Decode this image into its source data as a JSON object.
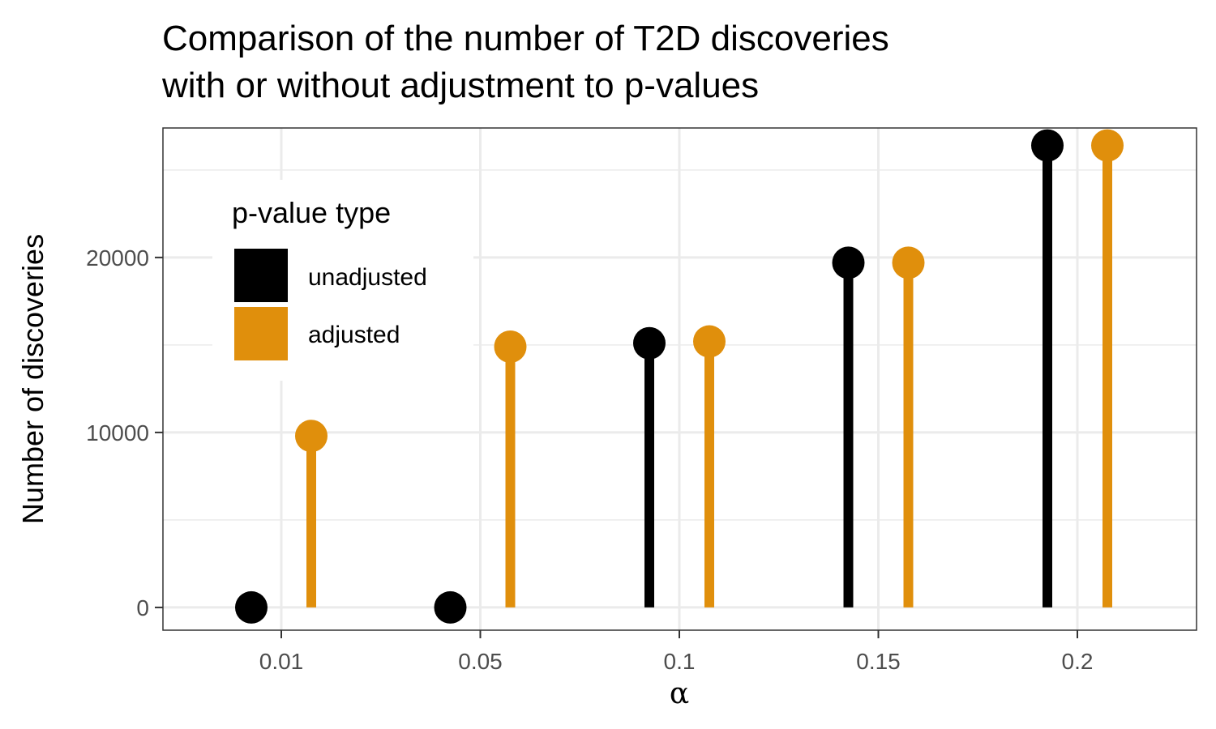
{
  "chart_data": {
    "type": "scatter",
    "title_lines": [
      "Comparison of the number of T2D discoveries",
      "with or without adjustment to p-values"
    ],
    "xlabel": "α",
    "ylabel": "Number of discoveries",
    "categories": [
      "0.01",
      "0.05",
      "0.1",
      "0.15",
      "0.2"
    ],
    "series": [
      {
        "name": "unadjusted",
        "color": "#000000",
        "values": [
          0,
          0,
          15100,
          19700,
          26400
        ]
      },
      {
        "name": "adjusted",
        "color": "#E08F0C",
        "values": [
          9800,
          14900,
          15200,
          19700,
          26400
        ]
      }
    ],
    "yticks": [
      "0",
      "10000",
      "20000"
    ],
    "ylim": [
      -1300,
      27400
    ],
    "legend": {
      "title": "p-value type",
      "placement": "top-left"
    },
    "grid": true
  }
}
